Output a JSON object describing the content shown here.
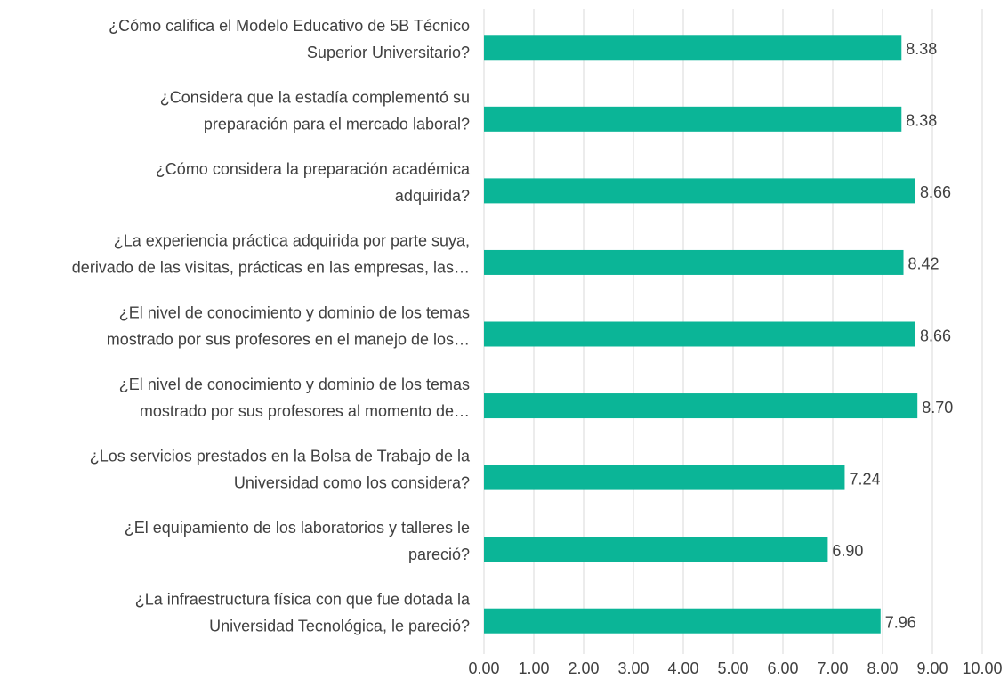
{
  "chart_data": {
    "type": "bar",
    "orientation": "horizontal",
    "categories": [
      [
        "¿Cómo califica el Modelo Educativo de 5B Técnico",
        "Superior Universitario?"
      ],
      [
        "¿Considera que la estadía complementó su",
        "preparación para el mercado laboral?"
      ],
      [
        "¿Cómo considera la preparación académica",
        "adquirida?"
      ],
      [
        "¿La experiencia práctica adquirida por parte suya,",
        "derivado de las visitas, prácticas en las empresas, las…"
      ],
      [
        "¿El nivel de conocimiento y dominio de los temas",
        "mostrado por sus profesores en el manejo de los…"
      ],
      [
        "¿El nivel de conocimiento y dominio de los temas",
        "mostrado por sus profesores al momento de…"
      ],
      [
        "¿Los servicios prestados en la Bolsa de Trabajo de la",
        "Universidad como los considera?"
      ],
      [
        "¿El equipamiento de los laboratorios y talleres le",
        "pareció?"
      ],
      [
        "¿La infraestructura física con que fue dotada la",
        "Universidad Tecnológica, le pareció?"
      ]
    ],
    "values": [
      8.38,
      8.38,
      8.66,
      8.42,
      8.66,
      8.7,
      7.24,
      6.9,
      7.96
    ],
    "value_labels": [
      "8.38",
      "8.38",
      "8.66",
      "8.42",
      "8.66",
      "8.70",
      "7.24",
      "6.90",
      "7.96"
    ],
    "color": "#0bb597",
    "xlim": [
      0,
      10
    ],
    "xticks": [
      {
        "value": 0,
        "label": "0.00"
      },
      {
        "value": 1,
        "label": "1.00"
      },
      {
        "value": 2,
        "label": "2.00"
      },
      {
        "value": 3,
        "label": "3.00"
      },
      {
        "value": 4,
        "label": "4.00"
      },
      {
        "value": 5,
        "label": "5.00"
      },
      {
        "value": 6,
        "label": "6.00"
      },
      {
        "value": 7,
        "label": "7.00"
      },
      {
        "value": 8,
        "label": "8.00"
      },
      {
        "value": 9,
        "label": "9.00"
      },
      {
        "value": 10,
        "label": "10.00"
      }
    ],
    "grid": true
  }
}
